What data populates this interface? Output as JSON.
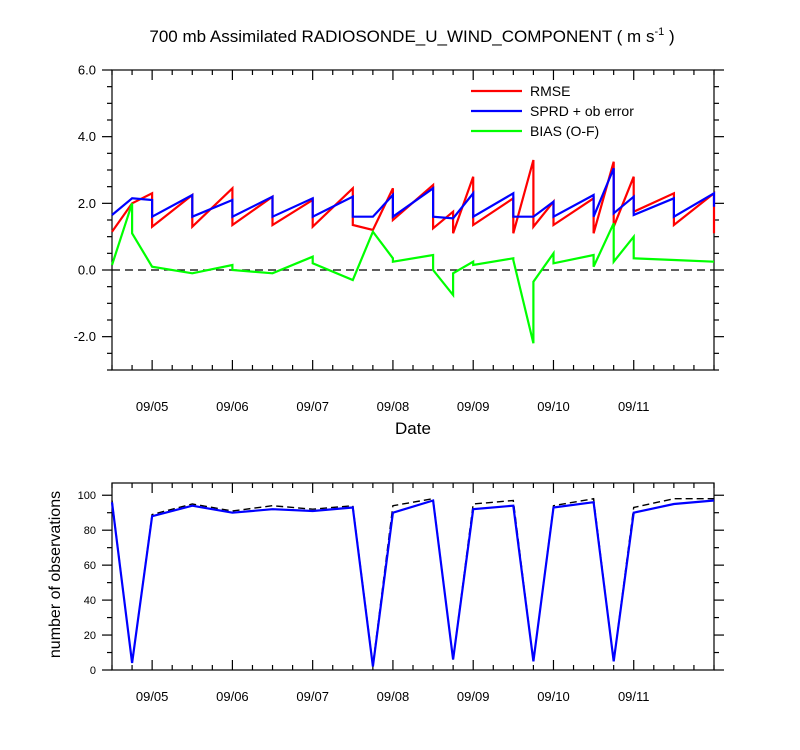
{
  "title": {
    "prefix": "700 mb Assimilated RADIOSONDE_U_WIND_COMPONENT ( m s",
    "exponent": "-1",
    "suffix": " )"
  },
  "colors": {
    "rmse": "#ff0000",
    "sprd": "#0000ff",
    "bias": "#00ff00",
    "nobs_used": "#0000ff",
    "nobs_poss": "#000000"
  },
  "chart_data": [
    {
      "type": "line",
      "name": "top-panel",
      "title": "700 mb Assimilated RADIOSONDE_U_WIND_COMPONENT ( m s-1 )",
      "xlabel": "Date",
      "ylabel": "",
      "xlim": [
        0,
        7.5
      ],
      "ylim": [
        -3.0,
        6.0
      ],
      "yticks": [
        -2.0,
        0.0,
        2.0,
        4.0,
        6.0
      ],
      "ytick_labels": [
        "-2.0",
        "0.0",
        "2.0",
        "4.0",
        "6.0"
      ],
      "xticks": [
        0.5,
        1.5,
        2.5,
        3.5,
        4.5,
        5.5,
        6.5
      ],
      "xtick_labels": [
        "09/05",
        "09/06",
        "09/07",
        "09/08",
        "09/09",
        "09/10",
        "09/11"
      ],
      "zero_line": true,
      "legend": {
        "placement": "top-right",
        "entries": [
          "RMSE",
          "SPRD + ob error",
          "BIAS (O-F)"
        ]
      },
      "series": [
        {
          "name": "RMSE",
          "points": [
            [
              0,
              1.15
            ],
            [
              0.25,
              2.0
            ],
            [
              0.25,
              2.0
            ],
            [
              0.5,
              2.3
            ],
            [
              0.5,
              1.3
            ],
            [
              1,
              2.25
            ],
            [
              1,
              1.3
            ],
            [
              1.5,
              2.45
            ],
            [
              1.5,
              1.35
            ],
            [
              2,
              2.2
            ],
            [
              2,
              1.35
            ],
            [
              2.5,
              2.1
            ],
            [
              2.5,
              1.3
            ],
            [
              3,
              2.45
            ],
            [
              3,
              1.35
            ],
            [
              3.25,
              1.2
            ],
            [
              3.25,
              1.2
            ],
            [
              3.5,
              2.45
            ],
            [
              3.5,
              1.5
            ],
            [
              4,
              2.55
            ],
            [
              4,
              1.25
            ],
            [
              4.25,
              1.75
            ],
            [
              4.25,
              1.1
            ],
            [
              4.5,
              2.8
            ],
            [
              4.5,
              1.35
            ],
            [
              5,
              2.15
            ],
            [
              5,
              1.1
            ],
            [
              5.25,
              3.3
            ],
            [
              5.25,
              1.3
            ],
            [
              5.5,
              2.05
            ],
            [
              5.5,
              1.35
            ],
            [
              6,
              2.15
            ],
            [
              6,
              1.1
            ],
            [
              6.25,
              3.25
            ],
            [
              6.25,
              1.3
            ],
            [
              6.5,
              2.8
            ],
            [
              6.5,
              1.75
            ],
            [
              7,
              2.3
            ],
            [
              7,
              1.35
            ],
            [
              7.5,
              2.3
            ],
            [
              7.5,
              1.1
            ]
          ]
        },
        {
          "name": "SPRD + ob error",
          "points": [
            [
              0,
              1.65
            ],
            [
              0.25,
              2.15
            ],
            [
              0.25,
              2.15
            ],
            [
              0.5,
              2.1
            ],
            [
              0.5,
              1.6
            ],
            [
              1,
              2.25
            ],
            [
              1,
              1.6
            ],
            [
              1.5,
              2.1
            ],
            [
              1.5,
              1.6
            ],
            [
              2,
              2.2
            ],
            [
              2,
              1.6
            ],
            [
              2.5,
              2.15
            ],
            [
              2.5,
              1.6
            ],
            [
              3,
              2.2
            ],
            [
              3,
              1.6
            ],
            [
              3.25,
              1.6
            ],
            [
              3.25,
              1.6
            ],
            [
              3.5,
              2.25
            ],
            [
              3.5,
              1.6
            ],
            [
              4,
              2.45
            ],
            [
              4,
              1.6
            ],
            [
              4.25,
              1.55
            ],
            [
              4.25,
              1.55
            ],
            [
              4.5,
              2.3
            ],
            [
              4.5,
              1.6
            ],
            [
              5,
              2.3
            ],
            [
              5,
              1.6
            ],
            [
              5.25,
              1.6
            ],
            [
              5.25,
              1.6
            ],
            [
              5.5,
              2.05
            ],
            [
              5.5,
              1.6
            ],
            [
              6,
              2.25
            ],
            [
              6,
              1.6
            ],
            [
              6.25,
              3.05
            ],
            [
              6.25,
              1.7
            ],
            [
              6.5,
              2.2
            ],
            [
              6.5,
              1.65
            ],
            [
              7,
              2.15
            ],
            [
              7,
              1.6
            ],
            [
              7.5,
              2.3
            ],
            [
              7.5,
              1.9
            ]
          ]
        },
        {
          "name": "BIAS (O-F)",
          "points": [
            [
              0,
              0.15
            ],
            [
              0.25,
              2.0
            ],
            [
              0.25,
              1.1
            ],
            [
              0.5,
              0.1
            ],
            [
              0.5,
              0.1
            ],
            [
              1,
              -0.1
            ],
            [
              1,
              -0.1
            ],
            [
              1.5,
              0.15
            ],
            [
              1.5,
              0.0
            ],
            [
              2,
              -0.1
            ],
            [
              2,
              -0.1
            ],
            [
              2.5,
              0.4
            ],
            [
              2.5,
              0.2
            ],
            [
              3,
              -0.3
            ],
            [
              3,
              -0.3
            ],
            [
              3.25,
              1.15
            ],
            [
              3.25,
              1.15
            ],
            [
              3.5,
              0.35
            ],
            [
              3.5,
              0.25
            ],
            [
              4,
              0.45
            ],
            [
              4,
              0.0
            ],
            [
              4.25,
              -0.75
            ],
            [
              4.25,
              -0.1
            ],
            [
              4.5,
              0.25
            ],
            [
              4.5,
              0.15
            ],
            [
              5,
              0.35
            ],
            [
              5,
              0.3
            ],
            [
              5.25,
              -2.2
            ],
            [
              5.25,
              -0.35
            ],
            [
              5.5,
              0.5
            ],
            [
              5.5,
              0.2
            ],
            [
              6,
              0.45
            ],
            [
              6,
              0.1
            ],
            [
              6.25,
              1.4
            ],
            [
              6.25,
              0.25
            ],
            [
              6.5,
              1.0
            ],
            [
              6.5,
              0.35
            ],
            [
              7,
              0.3
            ],
            [
              7,
              0.3
            ],
            [
              7.5,
              0.25
            ],
            [
              7.5,
              0.25
            ]
          ]
        }
      ]
    },
    {
      "type": "line",
      "name": "bottom-panel",
      "title": "",
      "xlabel": "",
      "ylabel": "number of observations",
      "xlim": [
        0,
        7.5
      ],
      "ylim": [
        0,
        107
      ],
      "yticks": [
        0,
        20,
        40,
        60,
        80,
        100
      ],
      "ytick_labels": [
        "0",
        "20",
        "40",
        "60",
        "80",
        "100"
      ],
      "xticks": [
        0.5,
        1.5,
        2.5,
        3.5,
        4.5,
        5.5,
        6.5
      ],
      "xtick_labels": [
        "09/05",
        "09/06",
        "09/07",
        "09/08",
        "09/09",
        "09/10",
        "09/11"
      ],
      "series": [
        {
          "name": "possible",
          "style": "dashed",
          "points": [
            [
              0,
              97
            ],
            [
              0.25,
              4
            ],
            [
              0.5,
              89
            ],
            [
              1,
              95
            ],
            [
              1.5,
              91
            ],
            [
              2,
              94
            ],
            [
              2.5,
              92
            ],
            [
              3,
              94
            ],
            [
              3.25,
              3
            ],
            [
              3.5,
              94
            ],
            [
              4,
              98
            ],
            [
              4.25,
              6
            ],
            [
              4.5,
              95
            ],
            [
              5,
              97
            ],
            [
              5.25,
              5
            ],
            [
              5.5,
              94
            ],
            [
              6,
              98
            ],
            [
              6.25,
              5
            ],
            [
              6.5,
              93
            ],
            [
              7,
              98
            ],
            [
              7.25,
              98
            ],
            [
              7.5,
              98
            ]
          ]
        },
        {
          "name": "used",
          "style": "solid",
          "points": [
            [
              0,
              96
            ],
            [
              0.25,
              4
            ],
            [
              0.5,
              88
            ],
            [
              1,
              94
            ],
            [
              1.5,
              90
            ],
            [
              2,
              92
            ],
            [
              2.5,
              91
            ],
            [
              3,
              93
            ],
            [
              3.25,
              2
            ],
            [
              3.5,
              90
            ],
            [
              4,
              97
            ],
            [
              4.25,
              6
            ],
            [
              4.5,
              92
            ],
            [
              5,
              94
            ],
            [
              5.25,
              5
            ],
            [
              5.5,
              93
            ],
            [
              6,
              96
            ],
            [
              6.25,
              5
            ],
            [
              6.5,
              90
            ],
            [
              7,
              95
            ],
            [
              7.5,
              97
            ]
          ]
        }
      ]
    }
  ]
}
